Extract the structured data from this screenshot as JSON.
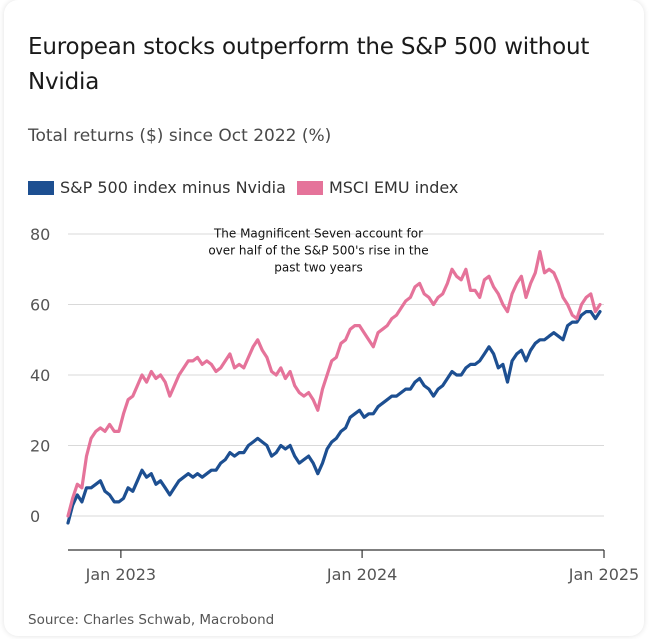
{
  "chart_data": {
    "type": "line",
    "title": "European stocks outperform the S&P 500 without Nvidia",
    "subtitle": "Total returns ($) since Oct 2022 (%)",
    "source": "Source: Charles Schwab, Macrobond",
    "ylim": [
      0,
      80
    ],
    "y_ticks": [
      0,
      20,
      40,
      60,
      80
    ],
    "x_ticks": [
      {
        "date": "2023-01-01",
        "label": "Jan 2023"
      },
      {
        "date": "2024-01-01",
        "label": "Jan 2024"
      },
      {
        "date": "2025-01-01",
        "label": "Jan 2025"
      }
    ],
    "x_range": [
      "2022-10-13",
      "2025-01-01"
    ],
    "grid": true,
    "legend_position": "top-left",
    "annotation": {
      "lines": [
        "The Magnificent Seven account for",
        "over half of the S&P 500's rise in the",
        "past two years"
      ],
      "anchor": {
        "date": "2023-10-27",
        "value": 79
      }
    },
    "series": [
      {
        "name": "S&P 500 index minus Nvidia",
        "color": "#1d4f91",
        "points": [
          [
            "2022-10-13",
            -2
          ],
          [
            "2022-10-20",
            3
          ],
          [
            "2022-10-27",
            6
          ],
          [
            "2022-11-03",
            4
          ],
          [
            "2022-11-10",
            8
          ],
          [
            "2022-11-17",
            8
          ],
          [
            "2022-11-24",
            9
          ],
          [
            "2022-12-01",
            10
          ],
          [
            "2022-12-08",
            7
          ],
          [
            "2022-12-15",
            6
          ],
          [
            "2022-12-22",
            4
          ],
          [
            "2022-12-29",
            4
          ],
          [
            "2023-01-05",
            5
          ],
          [
            "2023-01-12",
            8
          ],
          [
            "2023-01-19",
            7
          ],
          [
            "2023-01-26",
            10
          ],
          [
            "2023-02-02",
            13
          ],
          [
            "2023-02-09",
            11
          ],
          [
            "2023-02-16",
            12
          ],
          [
            "2023-02-23",
            9
          ],
          [
            "2023-03-02",
            10
          ],
          [
            "2023-03-09",
            8
          ],
          [
            "2023-03-16",
            6
          ],
          [
            "2023-03-23",
            8
          ],
          [
            "2023-03-30",
            10
          ],
          [
            "2023-04-06",
            11
          ],
          [
            "2023-04-13",
            12
          ],
          [
            "2023-04-20",
            11
          ],
          [
            "2023-04-27",
            12
          ],
          [
            "2023-05-04",
            11
          ],
          [
            "2023-05-11",
            12
          ],
          [
            "2023-05-18",
            13
          ],
          [
            "2023-05-25",
            13
          ],
          [
            "2023-06-01",
            15
          ],
          [
            "2023-06-08",
            16
          ],
          [
            "2023-06-15",
            18
          ],
          [
            "2023-06-22",
            17
          ],
          [
            "2023-06-29",
            18
          ],
          [
            "2023-07-06",
            18
          ],
          [
            "2023-07-13",
            20
          ],
          [
            "2023-07-20",
            21
          ],
          [
            "2023-07-27",
            22
          ],
          [
            "2023-08-03",
            21
          ],
          [
            "2023-08-10",
            20
          ],
          [
            "2023-08-17",
            17
          ],
          [
            "2023-08-24",
            18
          ],
          [
            "2023-08-31",
            20
          ],
          [
            "2023-09-07",
            19
          ],
          [
            "2023-09-14",
            20
          ],
          [
            "2023-09-21",
            17
          ],
          [
            "2023-09-28",
            15
          ],
          [
            "2023-10-05",
            16
          ],
          [
            "2023-10-12",
            17
          ],
          [
            "2023-10-19",
            15
          ],
          [
            "2023-10-26",
            12
          ],
          [
            "2023-11-02",
            15
          ],
          [
            "2023-11-09",
            19
          ],
          [
            "2023-11-16",
            21
          ],
          [
            "2023-11-23",
            22
          ],
          [
            "2023-11-30",
            24
          ],
          [
            "2023-12-07",
            25
          ],
          [
            "2023-12-14",
            28
          ],
          [
            "2023-12-21",
            29
          ],
          [
            "2023-12-28",
            30
          ],
          [
            "2024-01-04",
            28
          ],
          [
            "2024-01-11",
            29
          ],
          [
            "2024-01-18",
            29
          ],
          [
            "2024-01-25",
            31
          ],
          [
            "2024-02-01",
            32
          ],
          [
            "2024-02-08",
            33
          ],
          [
            "2024-02-15",
            34
          ],
          [
            "2024-02-22",
            34
          ],
          [
            "2024-02-29",
            35
          ],
          [
            "2024-03-07",
            36
          ],
          [
            "2024-03-14",
            36
          ],
          [
            "2024-03-21",
            38
          ],
          [
            "2024-03-28",
            39
          ],
          [
            "2024-04-04",
            37
          ],
          [
            "2024-04-11",
            36
          ],
          [
            "2024-04-18",
            34
          ],
          [
            "2024-04-25",
            36
          ],
          [
            "2024-05-02",
            37
          ],
          [
            "2024-05-09",
            39
          ],
          [
            "2024-05-16",
            41
          ],
          [
            "2024-05-23",
            40
          ],
          [
            "2024-05-30",
            40
          ],
          [
            "2024-06-06",
            42
          ],
          [
            "2024-06-13",
            43
          ],
          [
            "2024-06-20",
            43
          ],
          [
            "2024-06-27",
            44
          ],
          [
            "2024-07-04",
            46
          ],
          [
            "2024-07-11",
            48
          ],
          [
            "2024-07-18",
            46
          ],
          [
            "2024-07-25",
            42
          ],
          [
            "2024-08-01",
            43
          ],
          [
            "2024-08-08",
            38
          ],
          [
            "2024-08-15",
            44
          ],
          [
            "2024-08-22",
            46
          ],
          [
            "2024-08-29",
            47
          ],
          [
            "2024-09-05",
            44
          ],
          [
            "2024-09-12",
            47
          ],
          [
            "2024-09-19",
            49
          ],
          [
            "2024-09-26",
            50
          ],
          [
            "2024-10-03",
            50
          ],
          [
            "2024-10-10",
            51
          ],
          [
            "2024-10-17",
            52
          ],
          [
            "2024-10-24",
            51
          ],
          [
            "2024-10-31",
            50
          ],
          [
            "2024-11-07",
            54
          ],
          [
            "2024-11-14",
            55
          ],
          [
            "2024-11-21",
            55
          ],
          [
            "2024-11-28",
            57
          ],
          [
            "2024-12-05",
            58
          ],
          [
            "2024-12-12",
            58
          ],
          [
            "2024-12-19",
            56
          ],
          [
            "2024-12-26",
            58
          ]
        ]
      },
      {
        "name": "MSCI EMU index",
        "color": "#e5739a",
        "points": [
          [
            "2022-10-13",
            0
          ],
          [
            "2022-10-20",
            5
          ],
          [
            "2022-10-27",
            9
          ],
          [
            "2022-11-03",
            8
          ],
          [
            "2022-11-10",
            17
          ],
          [
            "2022-11-17",
            22
          ],
          [
            "2022-11-24",
            24
          ],
          [
            "2022-12-01",
            25
          ],
          [
            "2022-12-08",
            24
          ],
          [
            "2022-12-15",
            26
          ],
          [
            "2022-12-22",
            24
          ],
          [
            "2022-12-29",
            24
          ],
          [
            "2023-01-05",
            29
          ],
          [
            "2023-01-12",
            33
          ],
          [
            "2023-01-19",
            34
          ],
          [
            "2023-01-26",
            37
          ],
          [
            "2023-02-02",
            40
          ],
          [
            "2023-02-09",
            38
          ],
          [
            "2023-02-16",
            41
          ],
          [
            "2023-02-23",
            39
          ],
          [
            "2023-03-02",
            40
          ],
          [
            "2023-03-09",
            38
          ],
          [
            "2023-03-16",
            34
          ],
          [
            "2023-03-23",
            37
          ],
          [
            "2023-03-30",
            40
          ],
          [
            "2023-04-06",
            42
          ],
          [
            "2023-04-13",
            44
          ],
          [
            "2023-04-20",
            44
          ],
          [
            "2023-04-27",
            45
          ],
          [
            "2023-05-04",
            43
          ],
          [
            "2023-05-11",
            44
          ],
          [
            "2023-05-18",
            43
          ],
          [
            "2023-05-25",
            41
          ],
          [
            "2023-06-01",
            42
          ],
          [
            "2023-06-08",
            44
          ],
          [
            "2023-06-15",
            46
          ],
          [
            "2023-06-22",
            42
          ],
          [
            "2023-06-29",
            43
          ],
          [
            "2023-07-06",
            42
          ],
          [
            "2023-07-13",
            45
          ],
          [
            "2023-07-20",
            48
          ],
          [
            "2023-07-27",
            50
          ],
          [
            "2023-08-03",
            47
          ],
          [
            "2023-08-10",
            45
          ],
          [
            "2023-08-17",
            41
          ],
          [
            "2023-08-24",
            40
          ],
          [
            "2023-08-31",
            42
          ],
          [
            "2023-09-07",
            39
          ],
          [
            "2023-09-14",
            41
          ],
          [
            "2023-09-21",
            37
          ],
          [
            "2023-09-28",
            35
          ],
          [
            "2023-10-05",
            34
          ],
          [
            "2023-10-12",
            35
          ],
          [
            "2023-10-19",
            33
          ],
          [
            "2023-10-26",
            30
          ],
          [
            "2023-11-02",
            36
          ],
          [
            "2023-11-09",
            40
          ],
          [
            "2023-11-16",
            44
          ],
          [
            "2023-11-23",
            45
          ],
          [
            "2023-11-30",
            49
          ],
          [
            "2023-12-07",
            50
          ],
          [
            "2023-12-14",
            53
          ],
          [
            "2023-12-21",
            54
          ],
          [
            "2023-12-28",
            54
          ],
          [
            "2024-01-04",
            52
          ],
          [
            "2024-01-11",
            50
          ],
          [
            "2024-01-18",
            48
          ],
          [
            "2024-01-25",
            52
          ],
          [
            "2024-02-01",
            53
          ],
          [
            "2024-02-08",
            54
          ],
          [
            "2024-02-15",
            56
          ],
          [
            "2024-02-22",
            57
          ],
          [
            "2024-02-29",
            59
          ],
          [
            "2024-03-07",
            61
          ],
          [
            "2024-03-14",
            62
          ],
          [
            "2024-03-21",
            65
          ],
          [
            "2024-03-28",
            66
          ],
          [
            "2024-04-04",
            63
          ],
          [
            "2024-04-11",
            62
          ],
          [
            "2024-04-18",
            60
          ],
          [
            "2024-04-25",
            62
          ],
          [
            "2024-05-02",
            63
          ],
          [
            "2024-05-09",
            66
          ],
          [
            "2024-05-16",
            70
          ],
          [
            "2024-05-23",
            68
          ],
          [
            "2024-05-30",
            67
          ],
          [
            "2024-06-06",
            70
          ],
          [
            "2024-06-13",
            64
          ],
          [
            "2024-06-20",
            64
          ],
          [
            "2024-06-27",
            62
          ],
          [
            "2024-07-04",
            67
          ],
          [
            "2024-07-11",
            68
          ],
          [
            "2024-07-18",
            65
          ],
          [
            "2024-07-25",
            63
          ],
          [
            "2024-08-01",
            60
          ],
          [
            "2024-08-08",
            58
          ],
          [
            "2024-08-15",
            63
          ],
          [
            "2024-08-22",
            66
          ],
          [
            "2024-08-29",
            68
          ],
          [
            "2024-09-05",
            62
          ],
          [
            "2024-09-12",
            66
          ],
          [
            "2024-09-19",
            69
          ],
          [
            "2024-09-26",
            75
          ],
          [
            "2024-10-03",
            69
          ],
          [
            "2024-10-10",
            70
          ],
          [
            "2024-10-17",
            69
          ],
          [
            "2024-10-24",
            66
          ],
          [
            "2024-10-31",
            62
          ],
          [
            "2024-11-07",
            60
          ],
          [
            "2024-11-14",
            57
          ],
          [
            "2024-11-21",
            56
          ],
          [
            "2024-11-28",
            60
          ],
          [
            "2024-12-05",
            62
          ],
          [
            "2024-12-12",
            63
          ],
          [
            "2024-12-19",
            58
          ],
          [
            "2024-12-26",
            60
          ]
        ]
      }
    ]
  }
}
